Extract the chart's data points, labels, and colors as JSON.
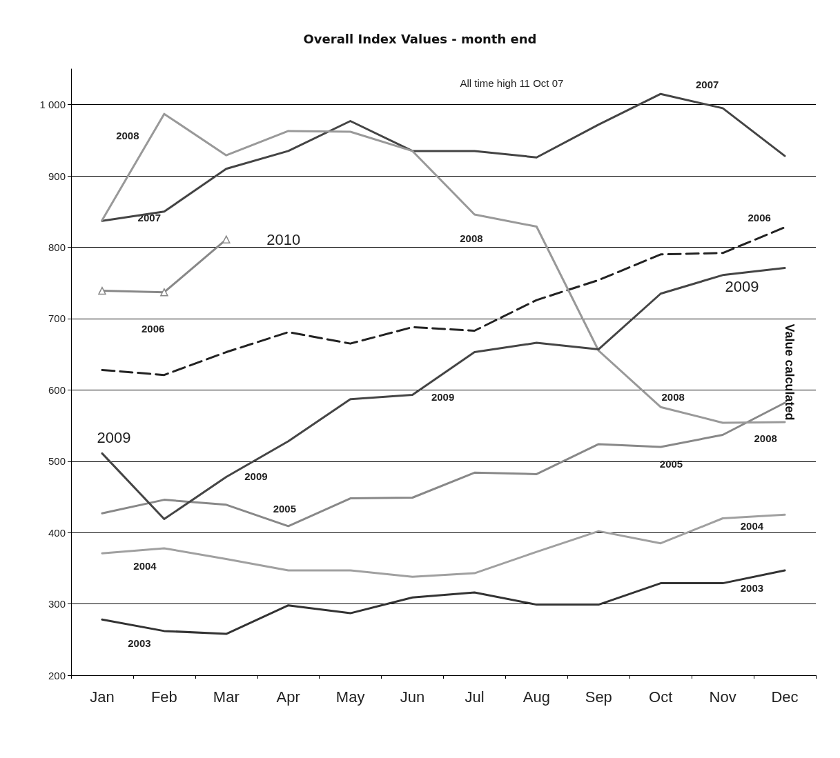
{
  "chart_data": {
    "type": "line",
    "title": "Overall Index Values - month end",
    "ylabel": "Value calculated",
    "categories": [
      "Jan",
      "Feb",
      "Mar",
      "Apr",
      "May",
      "Jun",
      "Jul",
      "Aug",
      "Sep",
      "Oct",
      "Nov",
      "Dec"
    ],
    "series": [
      {
        "color": "#333333",
        "values": [
          278,
          262,
          258,
          298,
          287,
          309,
          316,
          299,
          299,
          329,
          329,
          347
        ]
      },
      {
        "color": "#a0a0a0",
        "values": [
          371,
          378,
          363,
          347,
          347,
          338,
          343,
          373,
          402,
          385,
          420,
          425
        ]
      },
      {
        "color": "#888888",
        "values": [
          427,
          446,
          439,
          409,
          448,
          449,
          484,
          482,
          524,
          520,
          537,
          582
        ]
      },
      {
        "color": "#222222",
        "line_style": "dashed",
        "values": [
          628,
          621,
          653,
          681,
          665,
          688,
          683,
          726,
          754,
          790,
          792,
          828
        ]
      },
      {
        "color": "#444444",
        "values": [
          837,
          850,
          910,
          935,
          977,
          935,
          935,
          926,
          972,
          1015,
          995,
          928
        ]
      },
      {
        "color": "#999999",
        "values": [
          838,
          987,
          929,
          963,
          962,
          935,
          846,
          829,
          655,
          576,
          554,
          555
        ]
      },
      {
        "color": "#454545",
        "values": [
          511,
          419,
          478,
          528,
          587,
          593,
          653,
          666,
          657,
          735,
          761,
          771
        ]
      },
      {
        "color": "#888888",
        "marker": "triangle",
        "values": [
          739,
          737,
          811,
          null,
          null,
          null,
          null,
          null,
          null,
          null,
          null,
          null
        ]
      }
    ],
    "ylim": [
      200,
      1050
    ],
    "yticks": [
      200,
      300,
      400,
      500,
      600,
      700,
      800,
      900,
      {
        "value": 1000,
        "label": "1 000"
      }
    ],
    "grid": "y",
    "marker": "none",
    "line_style": "solid",
    "annotations": [
      "All time high 11 Oct 07",
      "2003",
      "2003",
      "2004",
      "2004",
      "2005",
      "2005",
      "2006",
      "2006",
      "2007",
      "2007",
      "2008",
      "2008",
      "2008",
      "2008",
      "2009",
      "2009",
      "2009",
      "2009",
      "2010"
    ]
  }
}
